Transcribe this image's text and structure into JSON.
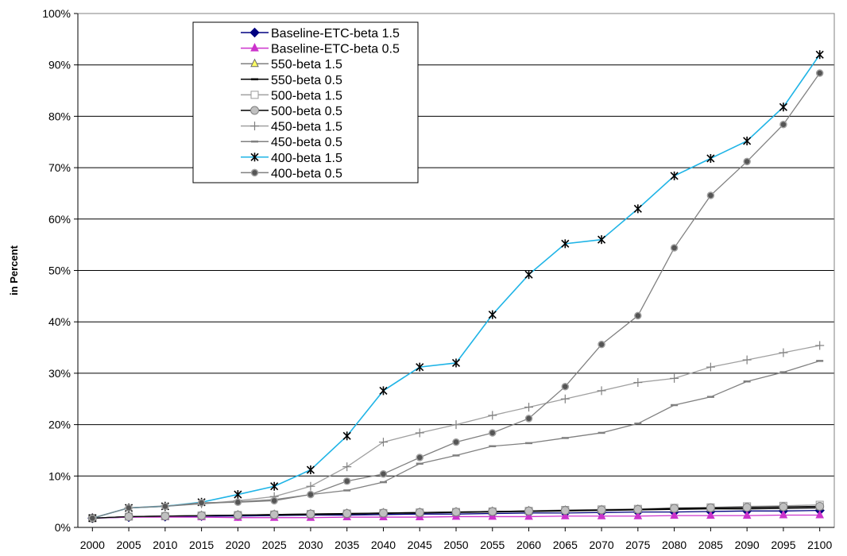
{
  "chart_data": {
    "type": "line",
    "title": "",
    "xlabel": "",
    "ylabel": "in Percent",
    "ylim": [
      0,
      100
    ],
    "y_ticks": [
      "0%",
      "10%",
      "20%",
      "30%",
      "40%",
      "50%",
      "60%",
      "70%",
      "80%",
      "90%",
      "100%"
    ],
    "grid": "horizontal",
    "legend_position": "top-left",
    "x": [
      2000,
      2005,
      2010,
      2015,
      2020,
      2025,
      2030,
      2035,
      2040,
      2045,
      2050,
      2055,
      2060,
      2065,
      2070,
      2075,
      2080,
      2085,
      2090,
      2095,
      2100
    ],
    "series": [
      {
        "name": "Baseline-ETC-beta 1.5",
        "color": "#000080",
        "marker": "diamond",
        "values": [
          1.8,
          2.0,
          2.1,
          2.2,
          2.2,
          2.3,
          2.4,
          2.4,
          2.5,
          2.6,
          2.6,
          2.7,
          2.8,
          2.8,
          2.9,
          3.0,
          3.0,
          3.1,
          3.2,
          3.2,
          3.3
        ]
      },
      {
        "name": "Baseline-ETC-beta 0.5",
        "color": "#cc33cc",
        "marker": "triangle",
        "values": [
          1.8,
          2.0,
          2.0,
          2.0,
          1.9,
          1.9,
          1.9,
          2.0,
          2.0,
          2.0,
          2.1,
          2.1,
          2.1,
          2.2,
          2.2,
          2.2,
          2.3,
          2.3,
          2.3,
          2.4,
          2.4
        ]
      },
      {
        "name": "550-beta 1.5",
        "color": "#808080",
        "marker": "triangle-yellow",
        "values": [
          1.8,
          2.1,
          2.2,
          2.3,
          2.4,
          2.5,
          2.6,
          2.7,
          2.8,
          2.9,
          3.0,
          3.1,
          3.2,
          3.3,
          3.4,
          3.5,
          3.6,
          3.7,
          3.8,
          3.9,
          4.0
        ]
      },
      {
        "name": "550-beta 0.5",
        "color": "#000000",
        "marker": "dash",
        "values": [
          1.8,
          2.1,
          2.2,
          2.3,
          2.4,
          2.4,
          2.5,
          2.6,
          2.7,
          2.8,
          2.9,
          3.0,
          3.1,
          3.2,
          3.3,
          3.4,
          3.5,
          3.6,
          3.6,
          3.7,
          3.8
        ]
      },
      {
        "name": "500-beta 1.5",
        "color": "#a0a0a0",
        "marker": "square-open",
        "values": [
          1.8,
          2.1,
          2.2,
          2.3,
          2.4,
          2.5,
          2.6,
          2.7,
          2.8,
          2.9,
          3.0,
          3.1,
          3.2,
          3.4,
          3.5,
          3.6,
          3.8,
          3.9,
          4.1,
          4.2,
          4.4
        ]
      },
      {
        "name": "500-beta 0.5",
        "color": "#000000",
        "marker": "circle-gray",
        "values": [
          1.8,
          2.1,
          2.2,
          2.3,
          2.4,
          2.5,
          2.6,
          2.7,
          2.8,
          2.9,
          3.0,
          3.1,
          3.2,
          3.3,
          3.4,
          3.5,
          3.7,
          3.8,
          3.9,
          4.0,
          4.1
        ]
      },
      {
        "name": "450-beta 1.5",
        "color": "#a0a0a0",
        "marker": "plus",
        "values": [
          1.8,
          3.8,
          4.2,
          4.6,
          5.2,
          6.0,
          8.0,
          11.8,
          16.6,
          18.4,
          20.0,
          21.8,
          23.4,
          25.0,
          26.6,
          28.2,
          29.0,
          31.2,
          32.6,
          34.0,
          35.4
        ]
      },
      {
        "name": "450-beta 0.5",
        "color": "#808080",
        "marker": "dash",
        "values": [
          1.8,
          3.8,
          4.1,
          4.6,
          5.0,
          5.4,
          6.4,
          7.2,
          8.8,
          12.4,
          14.0,
          15.8,
          16.4,
          17.4,
          18.4,
          20.2,
          23.8,
          25.4,
          28.4,
          30.2,
          32.4
        ]
      },
      {
        "name": "400-beta 1.5",
        "color": "#1fb4e6",
        "marker": "star",
        "values": [
          1.8,
          3.8,
          4.1,
          4.9,
          6.4,
          8.0,
          11.2,
          17.8,
          26.6,
          31.2,
          32.0,
          41.4,
          49.2,
          55.2,
          56.0,
          62.0,
          68.4,
          71.8,
          75.2,
          81.8,
          92.0
        ]
      },
      {
        "name": "400-beta 0.5",
        "color": "#808080",
        "marker": "circle-dark",
        "values": [
          1.8,
          3.8,
          4.1,
          4.8,
          4.9,
          5.2,
          6.4,
          9.0,
          10.4,
          13.6,
          16.6,
          18.4,
          21.2,
          27.4,
          35.6,
          41.2,
          54.4,
          64.6,
          71.2,
          78.4,
          88.4
        ]
      }
    ]
  }
}
